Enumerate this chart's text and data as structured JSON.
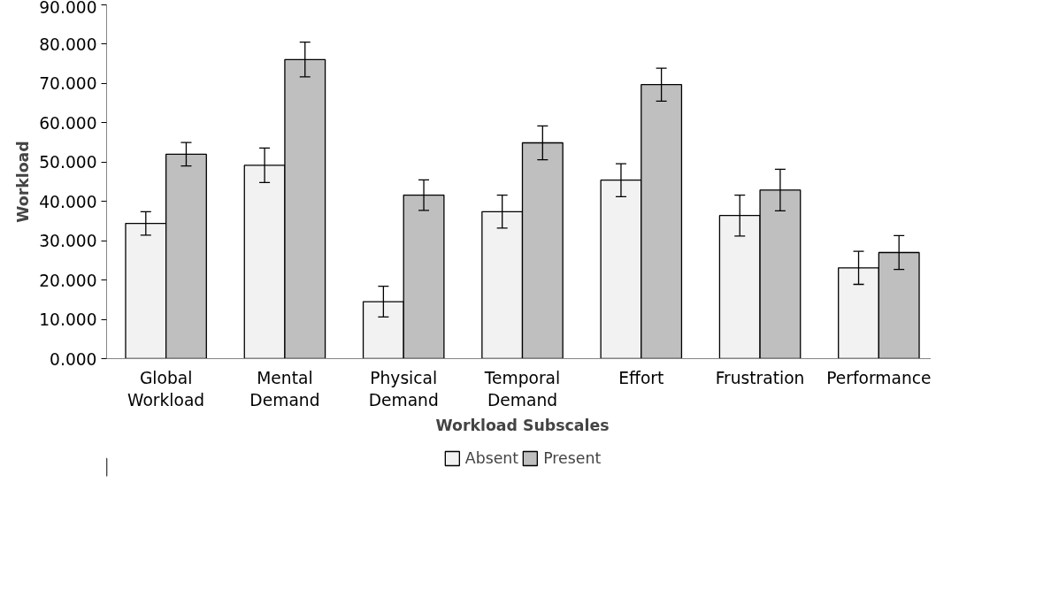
{
  "chart_data": {
    "type": "bar",
    "xlabel": "Workload Subscales",
    "ylabel": "Workload",
    "categories": [
      "Global Workload",
      "Mental Demand",
      "Physical Demand",
      "Temporal Demand",
      "Effort",
      "Frustration",
      "Performance"
    ],
    "series": [
      {
        "name": "Absent",
        "color": "#f2f2f2",
        "values": [
          34.4,
          49.2,
          14.5,
          37.4,
          45.4,
          36.4,
          23.1
        ],
        "errors": [
          3.0,
          4.4,
          3.9,
          4.2,
          4.2,
          5.2,
          4.2
        ]
      },
      {
        "name": "Present",
        "color": "#bfbfbf",
        "values": [
          52.0,
          76.1,
          41.6,
          54.9,
          69.7,
          42.9,
          27.0
        ],
        "errors": [
          3.0,
          4.4,
          3.9,
          4.3,
          4.2,
          5.3,
          4.3
        ]
      }
    ],
    "ylim": [
      0,
      90
    ],
    "yticks": [
      {
        "value": 0,
        "label": "0.000"
      },
      {
        "value": 10,
        "label": "10.000"
      },
      {
        "value": 20,
        "label": "20.000"
      },
      {
        "value": 30,
        "label": "30.000"
      },
      {
        "value": 40,
        "label": "40.000"
      },
      {
        "value": 50,
        "label": "50.000"
      },
      {
        "value": 60,
        "label": "60.000"
      },
      {
        "value": 70,
        "label": "70.000"
      },
      {
        "value": 80,
        "label": "80.000"
      },
      {
        "value": 90,
        "label": "90.000"
      }
    ],
    "grid": false,
    "legend": "bottom"
  }
}
